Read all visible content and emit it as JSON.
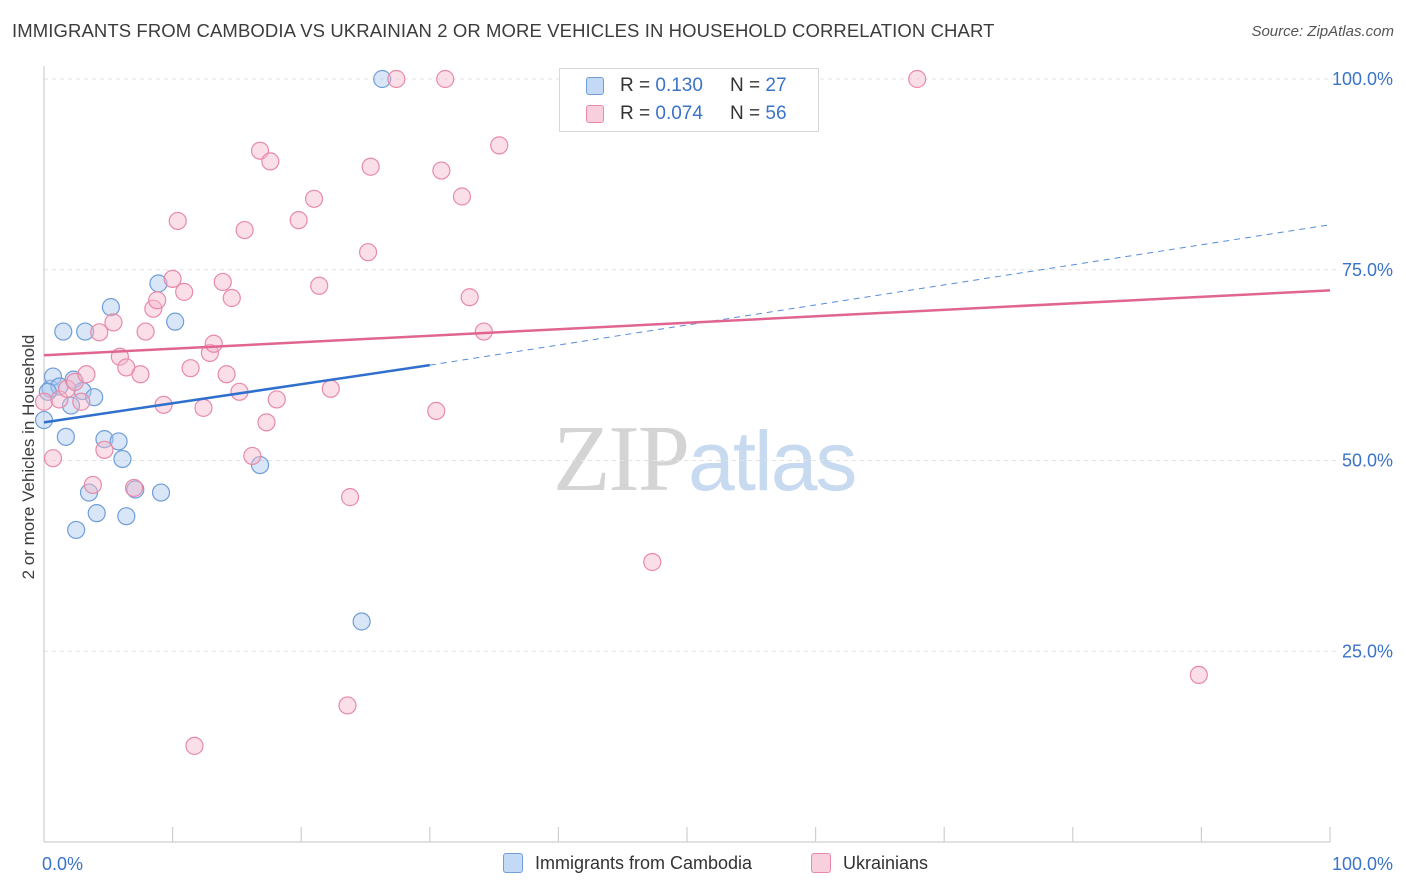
{
  "title": "IMMIGRANTS FROM CAMBODIA VS UKRAINIAN 2 OR MORE VEHICLES IN HOUSEHOLD CORRELATION CHART",
  "source": "Source: ZipAtlas.com",
  "watermark": {
    "zip": "ZIP",
    "atlas": "atlas"
  },
  "legend": {
    "cambodia": {
      "r_label": "R = ",
      "r_value": "0.130",
      "n_label": "N = ",
      "n_value": "27"
    },
    "ukrainian": {
      "r_label": "R = ",
      "r_value": "0.074",
      "n_label": "N = ",
      "n_value": "56"
    }
  },
  "bottom_legend": {
    "cambodia": "Immigrants from Cambodia",
    "ukrainian": "Ukrainians"
  },
  "colors": {
    "cambodia_fill": "#a9c8f0",
    "cambodia_stroke": "#6f9ed8",
    "cambodia_line": "#2f6fcd",
    "ukrainian_fill": "#f5b8cc",
    "ukrainian_stroke": "#e88aa8",
    "ukrainian_line": "#e06590",
    "axis_text": "#3a73c9",
    "grid": "#e3e3e3"
  },
  "chart_data": {
    "type": "scatter",
    "title": "IMMIGRANTS FROM CAMBODIA VS UKRAINIAN 2 OR MORE VEHICLES IN HOUSEHOLD CORRELATION CHART",
    "xlabel": "",
    "ylabel": "2 or more Vehicles in Household",
    "xlim": [
      0,
      100
    ],
    "ylim": [
      0,
      105
    ],
    "x_tick_labels": [
      "0.0%",
      "100.0%"
    ],
    "y_ticks": [
      25,
      50,
      75,
      100
    ],
    "y_tick_labels": [
      "25.0%",
      "50.0%",
      "75.0%",
      "100.0%"
    ],
    "grid": true,
    "legend_position": "top-center",
    "series": [
      {
        "name": "Immigrants from Cambodia",
        "key": "cambodia",
        "points": [
          [
            0.0,
            55.3
          ],
          [
            0.5,
            59.4
          ],
          [
            0.7,
            61.0
          ],
          [
            1.2,
            59.7
          ],
          [
            1.5,
            66.9
          ],
          [
            1.7,
            53.1
          ],
          [
            2.1,
            57.2
          ],
          [
            2.3,
            60.6
          ],
          [
            2.5,
            40.9
          ],
          [
            3.0,
            59.1
          ],
          [
            3.2,
            66.9
          ],
          [
            3.5,
            45.8
          ],
          [
            3.9,
            58.3
          ],
          [
            4.1,
            43.1
          ],
          [
            4.7,
            52.8
          ],
          [
            5.2,
            70.1
          ],
          [
            5.8,
            52.5
          ],
          [
            6.1,
            50.2
          ],
          [
            6.4,
            42.7
          ],
          [
            7.1,
            46.2
          ],
          [
            9.1,
            45.8
          ],
          [
            8.9,
            73.2
          ],
          [
            10.2,
            68.2
          ],
          [
            16.8,
            49.4
          ],
          [
            24.7,
            28.9
          ],
          [
            26.3,
            100.0
          ],
          [
            0.3,
            59.0
          ]
        ],
        "trend": {
          "x": [
            0,
            30
          ],
          "y": [
            55.0,
            62.5
          ],
          "dashed_extension": {
            "x": [
              30,
              100
            ],
            "y": [
              62.5,
              80.9
            ]
          }
        }
      },
      {
        "name": "Ukrainians",
        "key": "ukrainian",
        "points": [
          [
            0.0,
            57.7
          ],
          [
            0.7,
            50.3
          ],
          [
            1.2,
            58.0
          ],
          [
            1.8,
            59.4
          ],
          [
            2.4,
            60.3
          ],
          [
            2.9,
            57.7
          ],
          [
            3.3,
            61.3
          ],
          [
            3.8,
            46.8
          ],
          [
            4.3,
            66.8
          ],
          [
            4.7,
            51.4
          ],
          [
            5.4,
            68.1
          ],
          [
            5.9,
            63.6
          ],
          [
            6.4,
            62.2
          ],
          [
            7.0,
            46.4
          ],
          [
            7.5,
            61.3
          ],
          [
            7.9,
            66.9
          ],
          [
            8.5,
            69.9
          ],
          [
            8.8,
            71.0
          ],
          [
            9.3,
            57.3
          ],
          [
            10.0,
            73.8
          ],
          [
            10.4,
            81.4
          ],
          [
            10.9,
            72.1
          ],
          [
            11.4,
            62.1
          ],
          [
            11.7,
            12.6
          ],
          [
            12.4,
            56.9
          ],
          [
            12.9,
            64.1
          ],
          [
            13.2,
            65.3
          ],
          [
            13.9,
            73.4
          ],
          [
            14.2,
            61.3
          ],
          [
            14.6,
            71.3
          ],
          [
            15.2,
            59.0
          ],
          [
            15.6,
            80.2
          ],
          [
            16.2,
            50.6
          ],
          [
            16.8,
            90.6
          ],
          [
            17.3,
            55.0
          ],
          [
            17.6,
            89.2
          ],
          [
            18.1,
            58.0
          ],
          [
            19.8,
            81.5
          ],
          [
            21.0,
            84.3
          ],
          [
            21.4,
            72.9
          ],
          [
            22.3,
            59.4
          ],
          [
            23.6,
            17.9
          ],
          [
            23.8,
            45.2
          ],
          [
            25.2,
            77.3
          ],
          [
            25.4,
            88.5
          ],
          [
            27.4,
            100.0
          ],
          [
            30.5,
            56.5
          ],
          [
            30.9,
            88.0
          ],
          [
            31.2,
            100.0
          ],
          [
            32.5,
            84.6
          ],
          [
            33.1,
            71.4
          ],
          [
            34.2,
            66.9
          ],
          [
            35.4,
            91.3
          ],
          [
            47.3,
            36.7
          ],
          [
            67.9,
            100.0
          ],
          [
            89.8,
            21.9
          ]
        ],
        "trend": {
          "x": [
            0,
            100
          ],
          "y": [
            63.8,
            72.3
          ]
        }
      }
    ]
  }
}
